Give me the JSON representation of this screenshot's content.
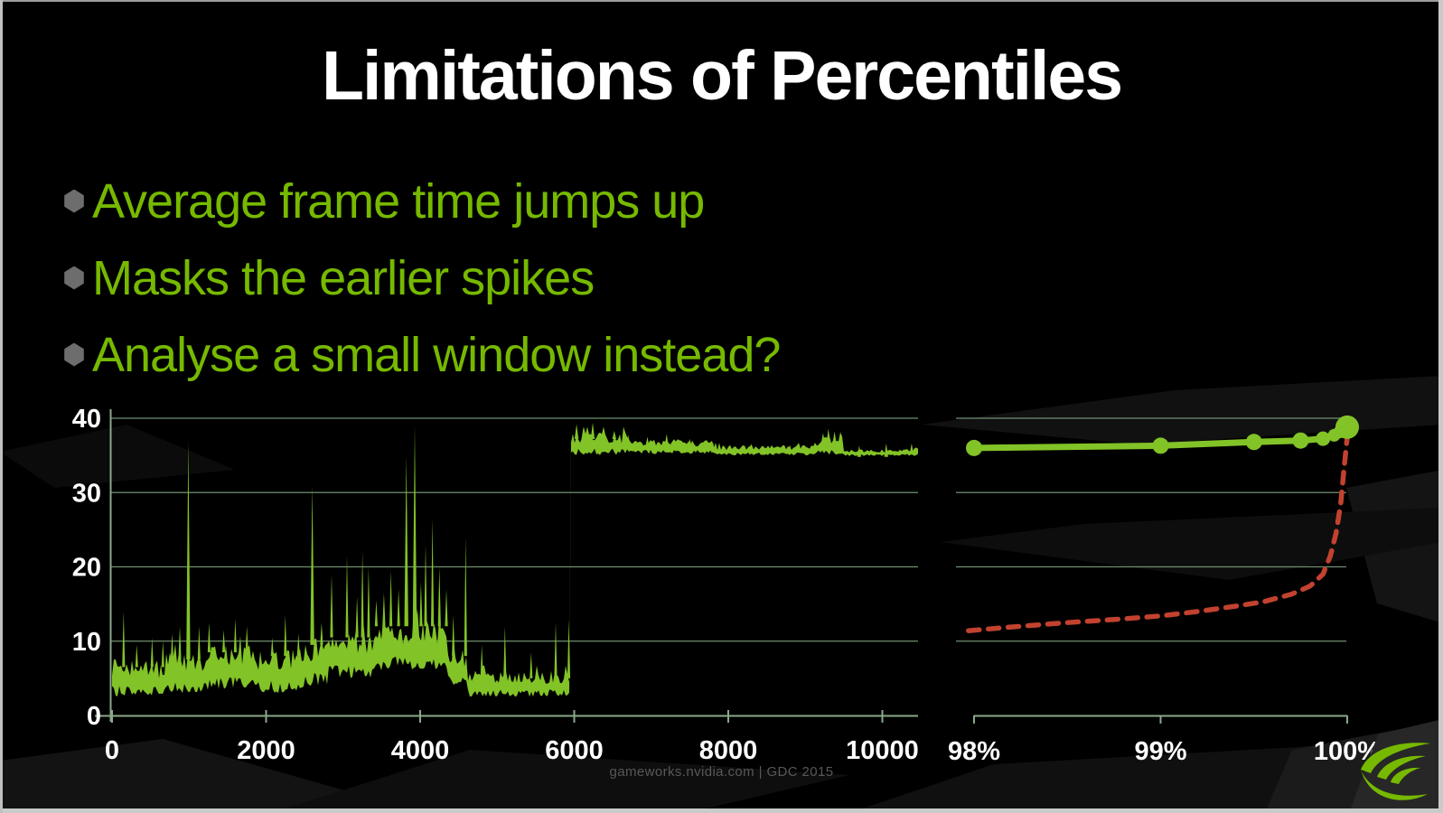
{
  "slide": {
    "title": "Limitations of Percentiles",
    "bullets": [
      "Average frame time jumps up",
      "Masks the earlier spikes",
      "Analyse a small window instead?"
    ],
    "footer": "gameworks.nvidia.com | GDC 2015"
  },
  "icons": {
    "bullet_marker": "hexagon-bullet-icon",
    "logo": "nvidia-eye-icon"
  },
  "colors": {
    "background": "#000000",
    "slide_green": "#76b900",
    "trace_green": "#82c327",
    "red_dashed": "#c2422f",
    "grid_green": "#6f8f71",
    "axis_green": "#8aa88a",
    "tick_text": "#ffffff",
    "footer_text": "#585858",
    "bullet_marker": "#6d6d6d",
    "frame_border": "#cacaca",
    "logo_plate": "#272727"
  },
  "chart_data": [
    {
      "id": "frame-time-trace",
      "type": "line",
      "title": "",
      "xlabel": "",
      "ylabel": "",
      "xlim": [
        0,
        10460
      ],
      "ylim": [
        0,
        40
      ],
      "grid": true,
      "x_ticks": [
        0,
        2000,
        4000,
        6000,
        8000,
        10000
      ],
      "y_ticks": [
        0,
        10,
        20,
        30,
        40
      ],
      "series": [
        {
          "name": "green-noisy-frame-time-trace",
          "style": "filled-noise-band"
        }
      ],
      "jump_at": 5950,
      "noise_seed": 1337,
      "trace_envelope": [
        [
          0,
          150,
          2.5,
          8
        ],
        [
          150,
          700,
          2.5,
          7.5
        ],
        [
          700,
          1250,
          3,
          8.5
        ],
        [
          1250,
          1900,
          3.5,
          9.5
        ],
        [
          1900,
          2500,
          3,
          9
        ],
        [
          2500,
          2800,
          4,
          10.5
        ],
        [
          2800,
          3400,
          5,
          11.5
        ],
        [
          3400,
          4350,
          6,
          13
        ],
        [
          4350,
          4600,
          4,
          9
        ],
        [
          4600,
          5950,
          2.5,
          6
        ],
        [
          5950,
          6700,
          35,
          38.2
        ],
        [
          6700,
          7800,
          35.2,
          37.2
        ],
        [
          7800,
          9140,
          35,
          36.4
        ],
        [
          9140,
          9480,
          35,
          37.6
        ],
        [
          9480,
          10300,
          34.9,
          35.8
        ],
        [
          10300,
          10461,
          34.9,
          36.2
        ]
      ],
      "trace_spikes": [
        [
          150,
          14
        ],
        [
          320,
          9.5
        ],
        [
          520,
          10.5
        ],
        [
          660,
          10
        ],
        [
          780,
          11
        ],
        [
          880,
          12
        ],
        [
          990,
          37
        ],
        [
          1130,
          12
        ],
        [
          1260,
          12.5
        ],
        [
          1450,
          11.5
        ],
        [
          1600,
          13
        ],
        [
          1750,
          12
        ],
        [
          2080,
          10.5
        ],
        [
          2250,
          13.5
        ],
        [
          2420,
          11
        ],
        [
          2600,
          31
        ],
        [
          2720,
          12.5
        ],
        [
          2850,
          19
        ],
        [
          3050,
          21.5
        ],
        [
          3180,
          16
        ],
        [
          3250,
          22
        ],
        [
          3330,
          20
        ],
        [
          3430,
          15.5
        ],
        [
          3530,
          16.5
        ],
        [
          3620,
          19.5
        ],
        [
          3720,
          17
        ],
        [
          3820,
          35
        ],
        [
          3930,
          39
        ],
        [
          4010,
          18
        ],
        [
          4070,
          23
        ],
        [
          4160,
          26.5
        ],
        [
          4250,
          20
        ],
        [
          4340,
          17
        ],
        [
          4430,
          13.5
        ],
        [
          4590,
          24
        ],
        [
          4800,
          9.5
        ],
        [
          5100,
          12
        ],
        [
          5440,
          8.5
        ],
        [
          5760,
          12.5
        ],
        [
          5930,
          13
        ],
        [
          6030,
          39.2
        ],
        [
          6120,
          38.8
        ],
        [
          6240,
          39.4
        ],
        [
          6380,
          38.7
        ],
        [
          6520,
          38.3
        ],
        [
          6700,
          37.8
        ],
        [
          6950,
          37.5
        ],
        [
          7200,
          37.9
        ],
        [
          7500,
          37.2
        ],
        [
          7800,
          36.8
        ],
        [
          8300,
          36.6
        ],
        [
          8800,
          36.4
        ],
        [
          9230,
          38
        ],
        [
          9300,
          38.6
        ],
        [
          9380,
          38.2
        ],
        [
          9700,
          36.3
        ],
        [
          10050,
          36.6
        ],
        [
          10380,
          36.6
        ]
      ]
    },
    {
      "id": "percentile-comparison",
      "type": "line",
      "title": "",
      "xlabel": "",
      "ylabel": "",
      "xlim": [
        97.9,
        100.08
      ],
      "ylim": [
        0,
        40
      ],
      "grid": true,
      "x_ticks": [
        "98%",
        "99%",
        "100%"
      ],
      "x_tick_values": [
        98,
        99,
        100
      ],
      "y_gridlines": [
        10,
        20,
        30,
        40
      ],
      "series": [
        {
          "name": "green-solid-with-markers",
          "style": "solid-markers",
          "points": [
            [
              98,
              36
            ],
            [
              99,
              36.3
            ],
            [
              99.5,
              36.8
            ],
            [
              99.75,
              37
            ],
            [
              99.87,
              37.25
            ],
            [
              99.93,
              37.7
            ],
            [
              99.96,
              38.15
            ],
            [
              100,
              38.8
            ]
          ],
          "marker_radii": [
            9,
            9,
            9,
            9,
            8,
            7,
            7,
            13
          ]
        },
        {
          "name": "red-dashed",
          "style": "dashed",
          "points": [
            [
              97.97,
              11.4
            ],
            [
              98.2,
              11.9
            ],
            [
              98.5,
              12.5
            ],
            [
              98.8,
              13
            ],
            [
              99,
              13.4
            ],
            [
              99.2,
              14
            ],
            [
              99.4,
              14.7
            ],
            [
              99.55,
              15.3
            ],
            [
              99.7,
              16.3
            ],
            [
              99.8,
              17.4
            ],
            [
              99.87,
              19
            ],
            [
              99.91,
              21.5
            ],
            [
              99.94,
              24.5
            ],
            [
              99.965,
              28.5
            ],
            [
              99.98,
              32.5
            ],
            [
              99.993,
              35.8
            ],
            [
              100,
              37.4
            ]
          ]
        }
      ]
    }
  ]
}
